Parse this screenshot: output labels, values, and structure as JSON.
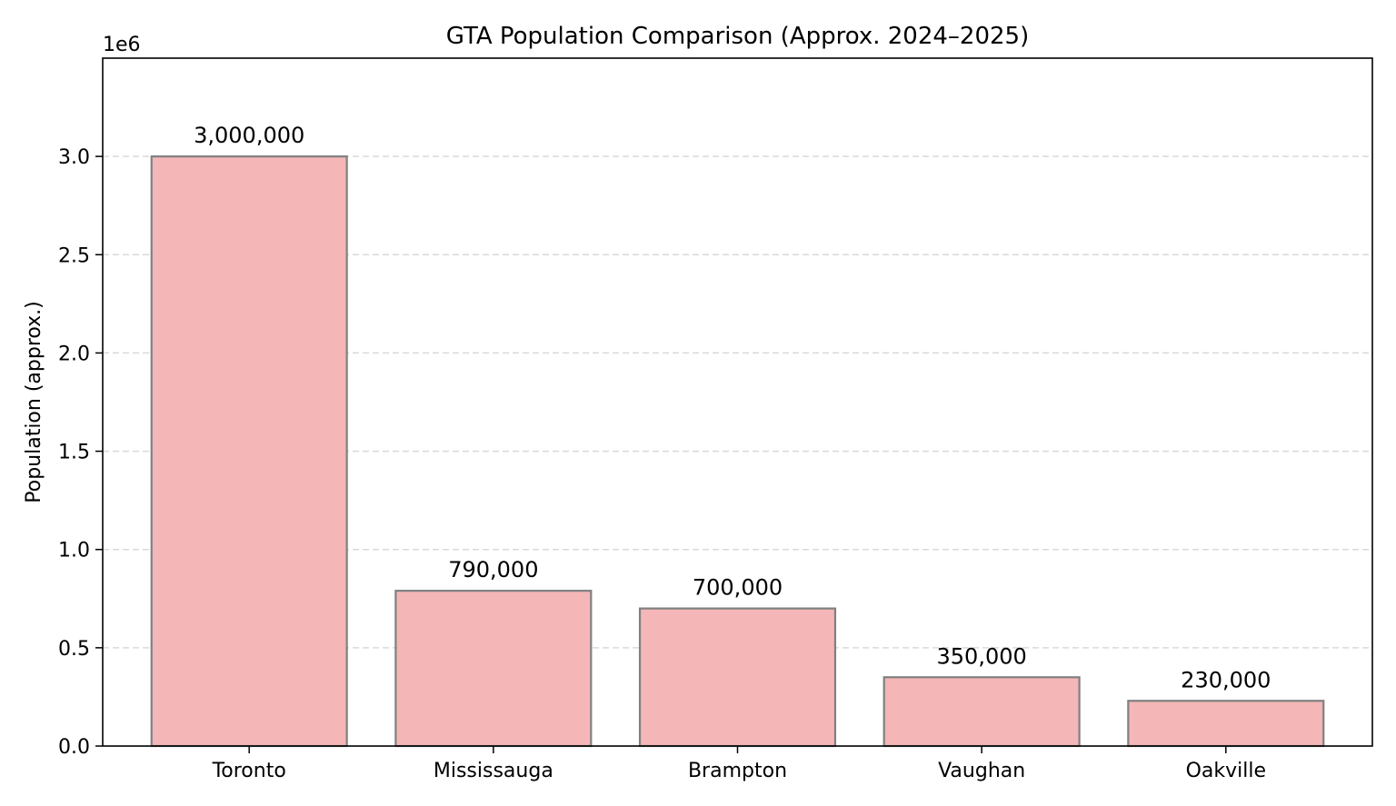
{
  "chart_data": {
    "type": "bar",
    "title": "GTA Population Comparison (Approx. 2024–2025)",
    "xlabel": "",
    "ylabel": "Population (approx.)",
    "y_offset_label": "1e6",
    "categories": [
      "Toronto",
      "Mississauga",
      "Brampton",
      "Vaughan",
      "Oakville"
    ],
    "values": [
      3000000,
      790000,
      700000,
      350000,
      230000
    ],
    "value_labels": [
      "3,000,000",
      "790,000",
      "700,000",
      "350,000",
      "230,000"
    ],
    "ylim": [
      0,
      3500000
    ],
    "yticks": [
      0,
      500000,
      1000000,
      1500000,
      2000000,
      2500000,
      3000000
    ],
    "ytick_labels": [
      "0.0",
      "0.5",
      "1.0",
      "1.5",
      "2.0",
      "2.5",
      "3.0"
    ],
    "grid": {
      "axis": "y",
      "style": "dashed"
    },
    "legend": "none",
    "colors": {
      "bar_fill": "#f4b6b6",
      "bar_edge": "#808080",
      "grid": "#d9d9d9",
      "axes": "#000000"
    }
  }
}
